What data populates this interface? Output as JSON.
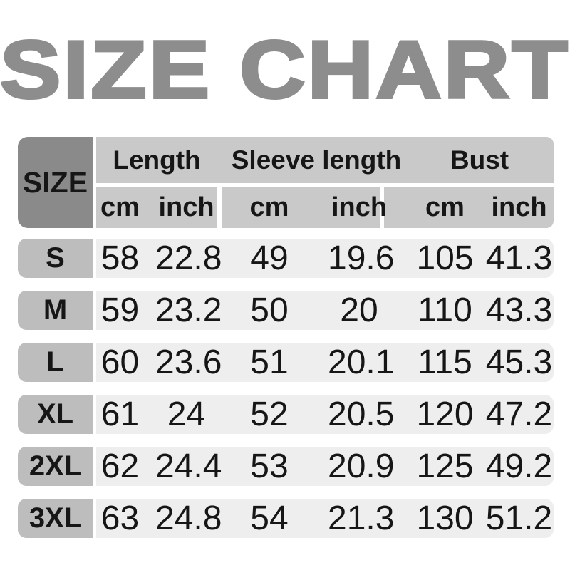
{
  "title": "SIZE CHART",
  "table": {
    "size_header": "SIZE",
    "groups": [
      "Length",
      "Sleeve length",
      "Bust"
    ],
    "units": {
      "cm": "cm",
      "inch": "inch"
    }
  },
  "chart_data": {
    "type": "table",
    "title": "SIZE CHART",
    "column_groups": [
      "Length",
      "Sleeve length",
      "Bust"
    ],
    "columns": [
      "SIZE",
      "Length (cm)",
      "Length (inch)",
      "Sleeve length (cm)",
      "Sleeve length (inch)",
      "Bust (cm)",
      "Bust (inch)"
    ],
    "rows": [
      [
        "S",
        58,
        22.8,
        49,
        19.6,
        105,
        41.3
      ],
      [
        "M",
        59,
        23.2,
        50,
        20,
        110,
        43.3
      ],
      [
        "L",
        60,
        23.6,
        51,
        20.1,
        115,
        45.3
      ],
      [
        "XL",
        61,
        24,
        52,
        20.5,
        120,
        47.2
      ],
      [
        "2XL",
        62,
        24.4,
        53,
        20.9,
        125,
        49.2
      ],
      [
        "3XL",
        63,
        24.8,
        54,
        21.3,
        130,
        51.2
      ]
    ]
  },
  "colors": {
    "background": "#ffffff",
    "title_text": "#8d8d8d",
    "size_header_bg": "#8a8a8a",
    "column_header_bg": "#c9c9c9",
    "size_cell_bg": "#bdbdbd",
    "row_bg": "#eeeeee",
    "text": "#161616"
  }
}
